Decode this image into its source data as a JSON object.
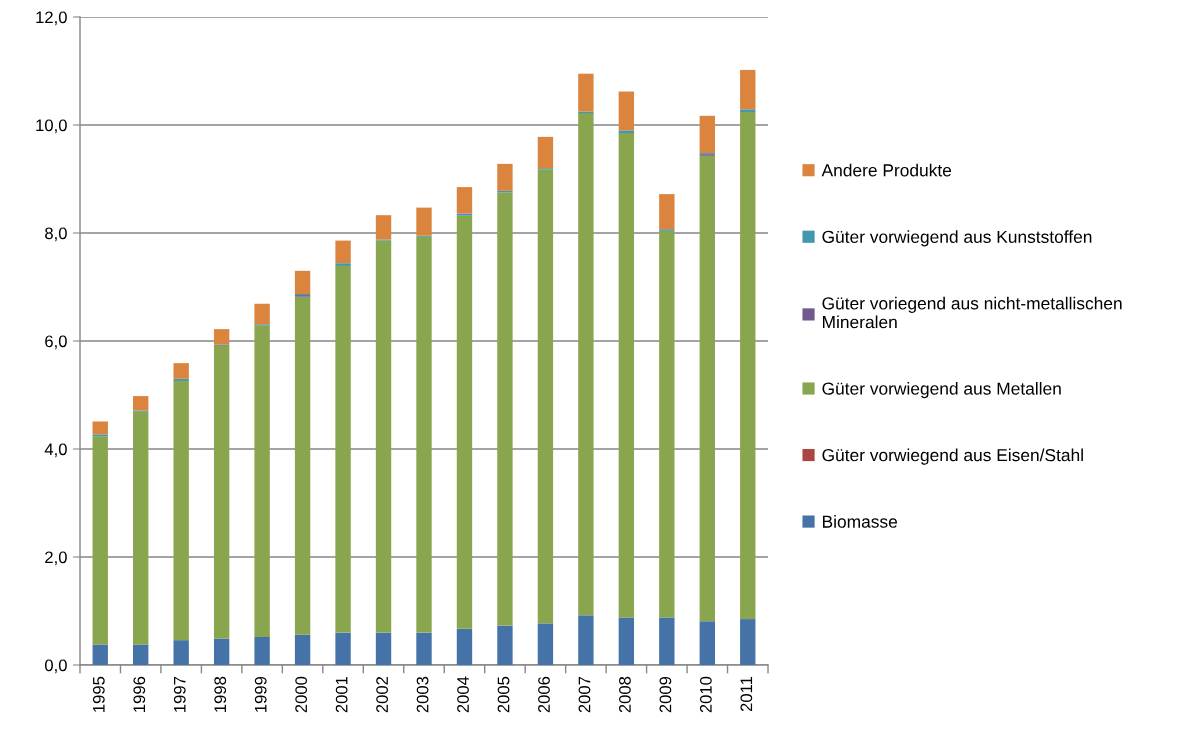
{
  "chart_data": {
    "type": "bar",
    "stacked": true,
    "categories": [
      "1995",
      "1996",
      "1997",
      "1998",
      "1999",
      "2000",
      "2001",
      "2002",
      "2003",
      "2004",
      "2005",
      "2006",
      "2007",
      "2008",
      "2009",
      "2010",
      "2011"
    ],
    "series": [
      {
        "name": "Biomasse",
        "color": "#4572a7",
        "values": [
          0.38,
          0.38,
          0.46,
          0.49,
          0.52,
          0.56,
          0.6,
          0.6,
          0.6,
          0.67,
          0.73,
          0.77,
          0.92,
          0.88,
          0.88,
          0.81,
          0.85
        ]
      },
      {
        "name": "Güter vorwiegend aus Eisen/Stahl",
        "color": "#aa4643",
        "values": [
          null,
          null,
          null,
          null,
          null,
          null,
          null,
          null,
          null,
          null,
          null,
          null,
          null,
          null,
          null,
          null,
          null
        ]
      },
      {
        "name": "Güter vorwiegend aus Metallen",
        "color": "#89a54e",
        "values": [
          3.85,
          4.31,
          4.8,
          5.42,
          5.77,
          6.26,
          6.79,
          7.26,
          7.33,
          7.65,
          8.02,
          8.41,
          9.3,
          8.97,
          7.16,
          8.62,
          9.39
        ]
      },
      {
        "name": "Güter voriegend aus nicht-metallischen Mineralen",
        "color": "#71588f",
        "values": [
          null,
          null,
          null,
          null,
          null,
          0.03,
          null,
          null,
          null,
          null,
          null,
          null,
          null,
          null,
          null,
          0.03,
          null
        ]
      },
      {
        "name": "Güter vorwiegend aus Kunststoffen",
        "color": "#4198af",
        "values": [
          0.04,
          0.02,
          0.04,
          0.02,
          0.02,
          0.02,
          0.05,
          0.02,
          0.02,
          0.04,
          0.03,
          0.02,
          0.03,
          0.05,
          0.03,
          0.02,
          0.05
        ]
      },
      {
        "name": "Andere Produkte",
        "color": "#db843d",
        "values": [
          0.24,
          0.27,
          0.29,
          0.29,
          0.38,
          0.43,
          0.42,
          0.45,
          0.52,
          0.49,
          0.5,
          0.58,
          0.7,
          0.72,
          0.65,
          0.69,
          0.73
        ]
      }
    ],
    "ylim": [
      0,
      12
    ],
    "yticks": [
      {
        "value": 0,
        "label": "0,0"
      },
      {
        "value": 2,
        "label": "2,0"
      },
      {
        "value": 4,
        "label": "4,0"
      },
      {
        "value": 6,
        "label": "6,0"
      },
      {
        "value": 8,
        "label": "8,0"
      },
      {
        "value": 10,
        "label": "10,0"
      },
      {
        "value": 12,
        "label": "12,0"
      }
    ],
    "grid": "y",
    "legend": "right"
  }
}
